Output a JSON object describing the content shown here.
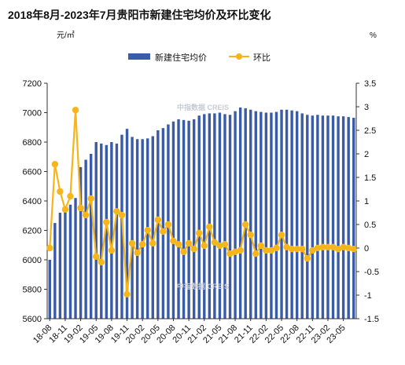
{
  "chart_data": {
    "type": "bar",
    "title": "2018年8月-2023年7月贵阳市新建住宅均价及环比变化",
    "left_unit": "元/㎡",
    "right_unit": "%",
    "watermark": "中指数据 CREIS",
    "y_left": {
      "min": 5600,
      "max": 7200,
      "step": 200
    },
    "y_right": {
      "min": -1.5,
      "max": 3.5,
      "step": 0.5
    },
    "grid": false,
    "legend_position": "top",
    "x_tick_labels": [
      "18-08",
      "18-11",
      "19-02",
      "19-05",
      "19-08",
      "19-11",
      "20-02",
      "20-05",
      "20-08",
      "20-11",
      "21-02",
      "21-05",
      "21-08",
      "21-11",
      "22-02",
      "22-05",
      "22-08",
      "22-11",
      "23-02",
      "23-05"
    ],
    "categories": [
      "18-08",
      "18-09",
      "18-10",
      "18-11",
      "18-12",
      "19-01",
      "19-02",
      "19-03",
      "19-04",
      "19-05",
      "19-06",
      "19-07",
      "19-08",
      "19-09",
      "19-10",
      "19-11",
      "19-12",
      "20-01",
      "20-02",
      "20-03",
      "20-04",
      "20-05",
      "20-06",
      "20-07",
      "20-08",
      "20-09",
      "20-10",
      "20-11",
      "20-12",
      "21-01",
      "21-02",
      "21-03",
      "21-04",
      "21-05",
      "21-06",
      "21-07",
      "21-08",
      "21-09",
      "21-10",
      "21-11",
      "21-12",
      "22-01",
      "22-02",
      "22-03",
      "22-04",
      "22-05",
      "22-06",
      "22-07",
      "22-08",
      "22-09",
      "22-10",
      "22-11",
      "22-12",
      "23-01",
      "23-02",
      "23-03",
      "23-04",
      "23-05",
      "23-06",
      "23-07"
    ],
    "series": [
      {
        "name": "新建住宅均价",
        "type": "bar",
        "axis": "left",
        "color": "#3a5ba8",
        "values": [
          6000,
          6250,
          6320,
          6330,
          6375,
          6420,
          6630,
          6680,
          6720,
          6800,
          6790,
          6780,
          6800,
          6790,
          6850,
          6890,
          6835,
          6820,
          6820,
          6825,
          6840,
          6880,
          6895,
          6920,
          6940,
          6955,
          6950,
          6945,
          6955,
          6980,
          6990,
          6995,
          6995,
          7000,
          6990,
          6985,
          7010,
          7035,
          7030,
          7020,
          7010,
          7005,
          7000,
          7000,
          7005,
          7020,
          7020,
          7015,
          7010,
          6995,
          6985,
          6980,
          6985,
          6980,
          6980,
          6980,
          6975,
          6975,
          6970,
          6965
        ]
      },
      {
        "name": "环比",
        "type": "line",
        "axis": "right",
        "color": "#f5b51b",
        "values": [
          0.0,
          1.78,
          1.2,
          0.82,
          1.1,
          2.93,
          0.85,
          0.7,
          1.05,
          -0.18,
          -0.3,
          0.55,
          -0.05,
          0.78,
          0.7,
          -0.98,
          0.1,
          -0.1,
          0.08,
          0.38,
          0.1,
          0.6,
          0.35,
          0.5,
          0.15,
          0.08,
          -0.08,
          0.1,
          -0.02,
          0.32,
          0.05,
          0.45,
          0.12,
          0.05,
          0.08,
          -0.12,
          -0.08,
          -0.05,
          0.5,
          0.28,
          -0.12,
          0.05,
          -0.05,
          -0.05,
          0.0,
          0.28,
          0.02,
          -0.02,
          -0.02,
          -0.02,
          -0.22,
          -0.05,
          0.0,
          0.02,
          0.02,
          0.02,
          -0.02,
          0.02,
          0.0,
          -0.02
        ]
      }
    ]
  }
}
